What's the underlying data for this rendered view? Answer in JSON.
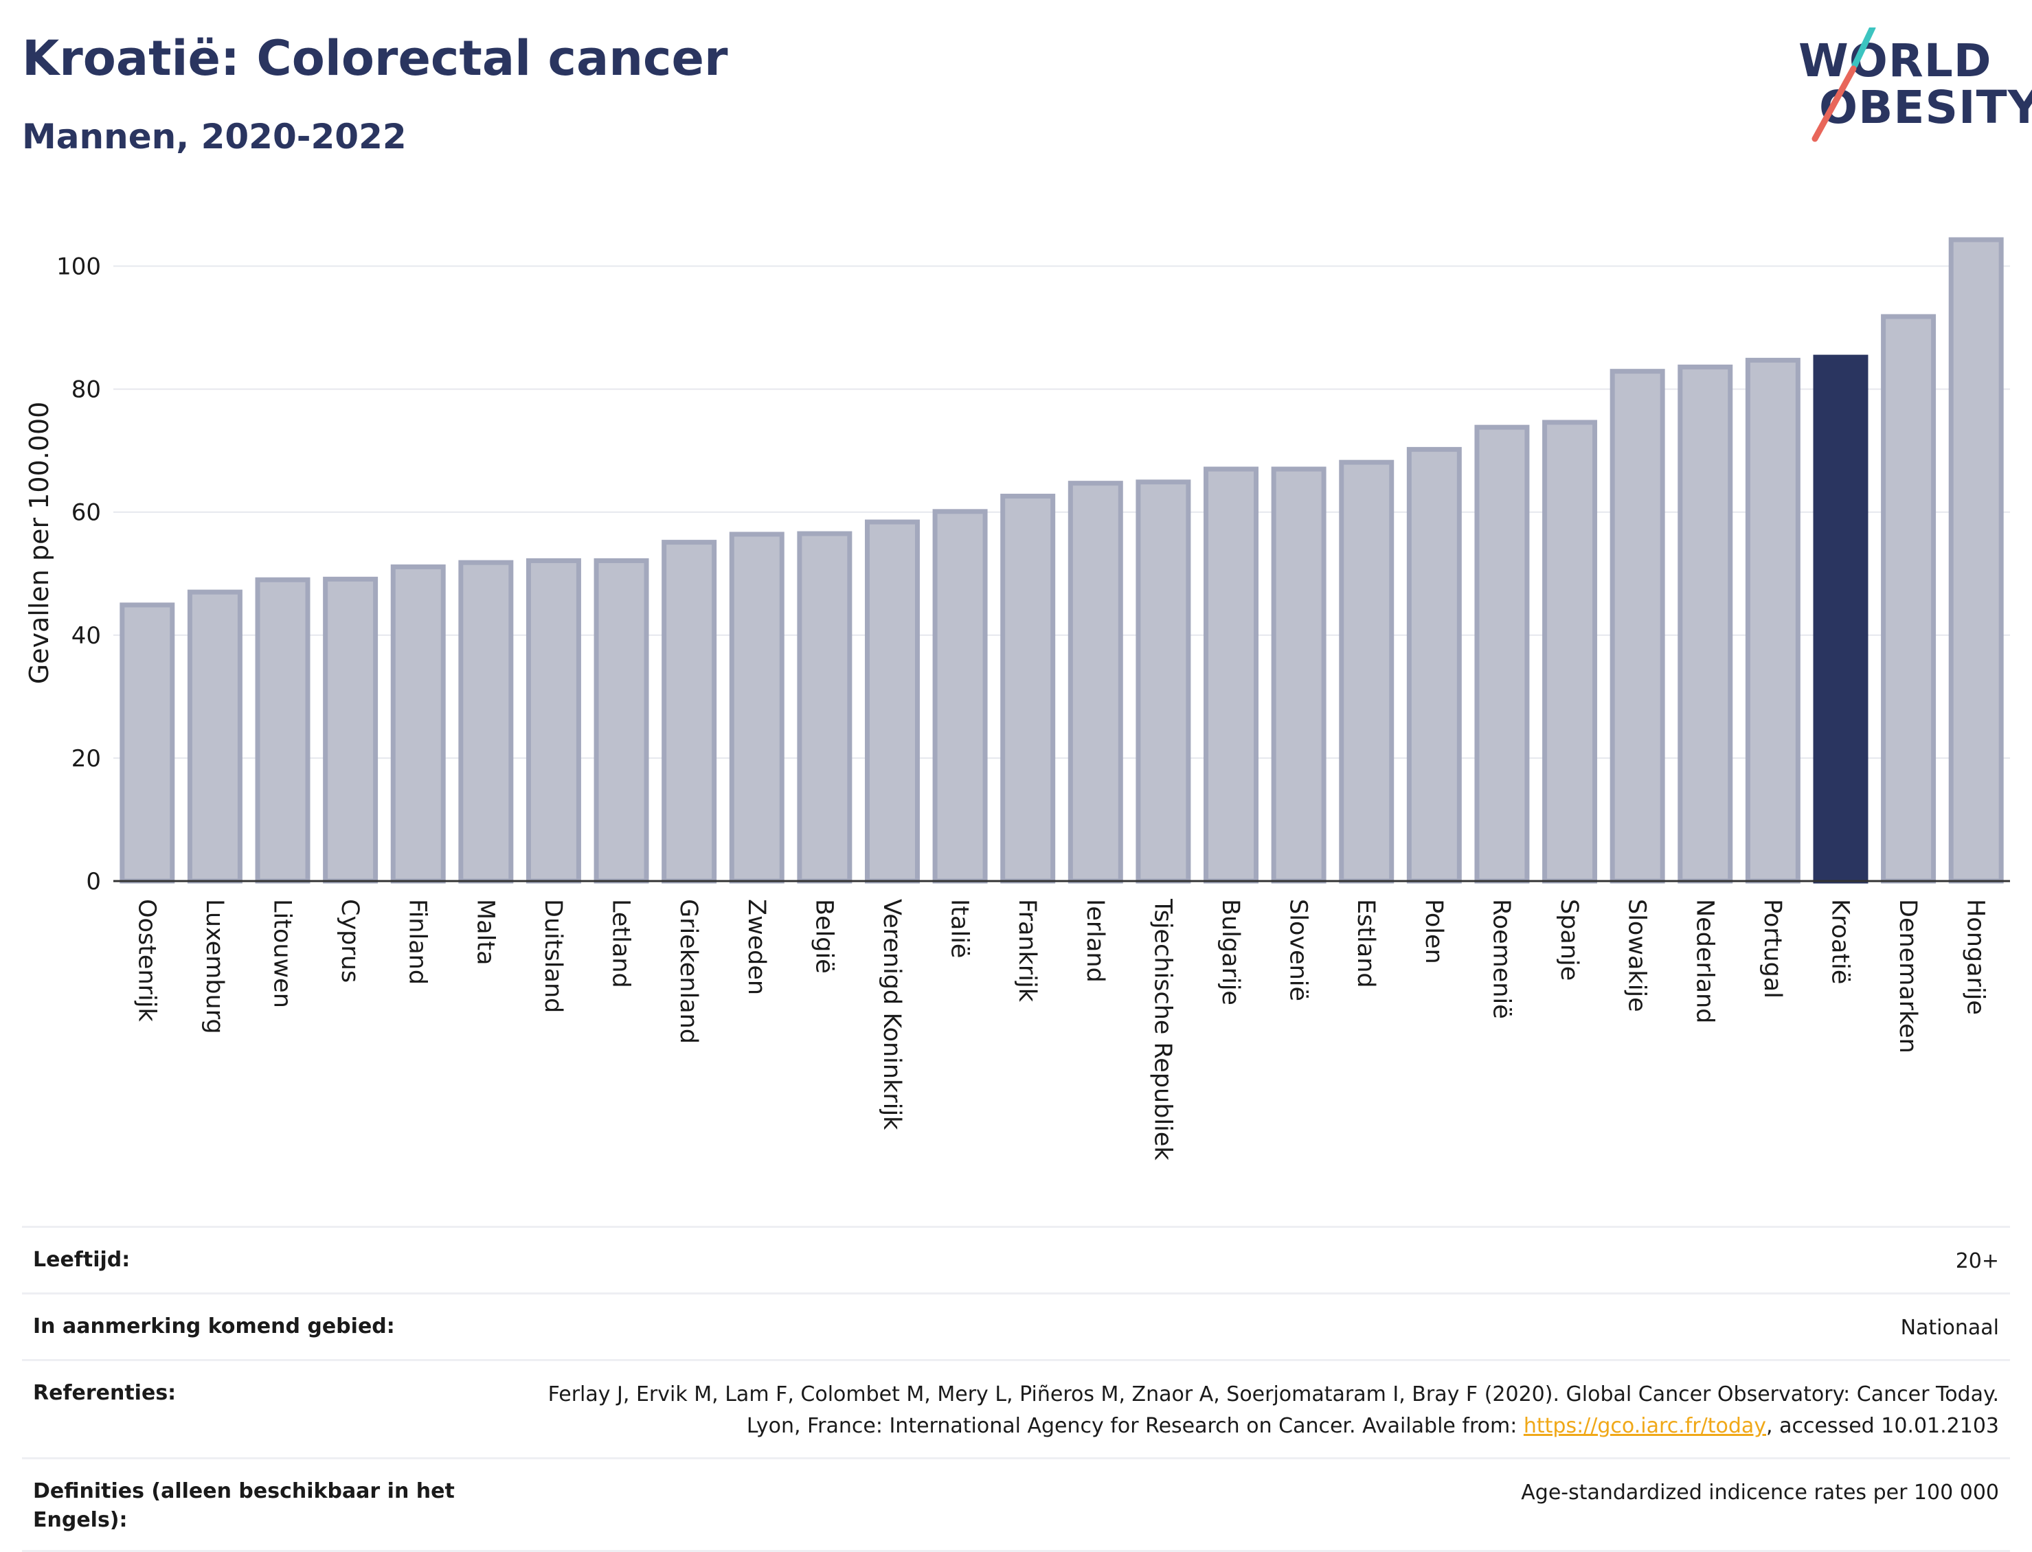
{
  "header": {
    "title": "Kroatië: Colorectal cancer",
    "subtitle": "Mannen, 2020-2022"
  },
  "logo": {
    "line1": "WORLD",
    "line2": "OBESITY",
    "accent_colors": [
      "#3cc4c0",
      "#e8665a"
    ]
  },
  "colors": {
    "bar_fill": "#bdc0cd",
    "bar_stroke": "#a3a8bd",
    "highlight_fill": "#2a3560",
    "grid": "#e6e8ee",
    "axis": "#333333"
  },
  "chart_data": {
    "type": "bar",
    "ylabel": "Gevallen per 100.000",
    "ylim": [
      0,
      110
    ],
    "yticks": [
      0,
      20,
      40,
      60,
      80,
      100
    ],
    "grid": true,
    "highlight": "Kroatië",
    "categories": [
      "Oostenrijk",
      "Luxemburg",
      "Litouwen",
      "Cyprus",
      "Finland",
      "Malta",
      "Duitsland",
      "Letland",
      "Griekenland",
      "Zweden",
      "België",
      "Verenigd Koninkrijk",
      "Italië",
      "Frankrijk",
      "Ierland",
      "Tsjechische Republiek",
      "Bulgarije",
      "Slovenië",
      "Estland",
      "Polen",
      "Roemenië",
      "Spanje",
      "Slowakije",
      "Nederland",
      "Portugal",
      "Kroatië",
      "Denemarken",
      "Hongarije"
    ],
    "values": [
      44.9,
      47.0,
      49.0,
      49.1,
      51.1,
      51.8,
      52.1,
      52.1,
      55.1,
      56.4,
      56.5,
      58.4,
      60.1,
      62.6,
      64.7,
      64.9,
      67.0,
      67.0,
      68.1,
      70.2,
      73.8,
      74.6,
      82.9,
      83.6,
      84.7,
      85.2,
      91.8,
      104.3
    ]
  },
  "info": {
    "age_label": "Leeftijd:",
    "age_value": "20+",
    "area_label": "In aanmerking komend gebied:",
    "area_value": "Nationaal",
    "ref_label": "Referenties:",
    "ref_text_1": "Ferlay J, Ervik M, Lam F, Colombet M, Mery L, Piñeros M, Znaor A, Soerjomataram I, Bray F (2020). Global Cancer Observatory: Cancer Today. Lyon, France: International Agency for Research on Cancer. Available from: ",
    "ref_link": "https://gco.iarc.fr/today",
    "ref_text_2": ", accessed 10.01.2103",
    "def_label": "Definities (alleen beschikbaar in het Engels):",
    "def_value": "Age-standardized indicence rates per 100 000"
  }
}
